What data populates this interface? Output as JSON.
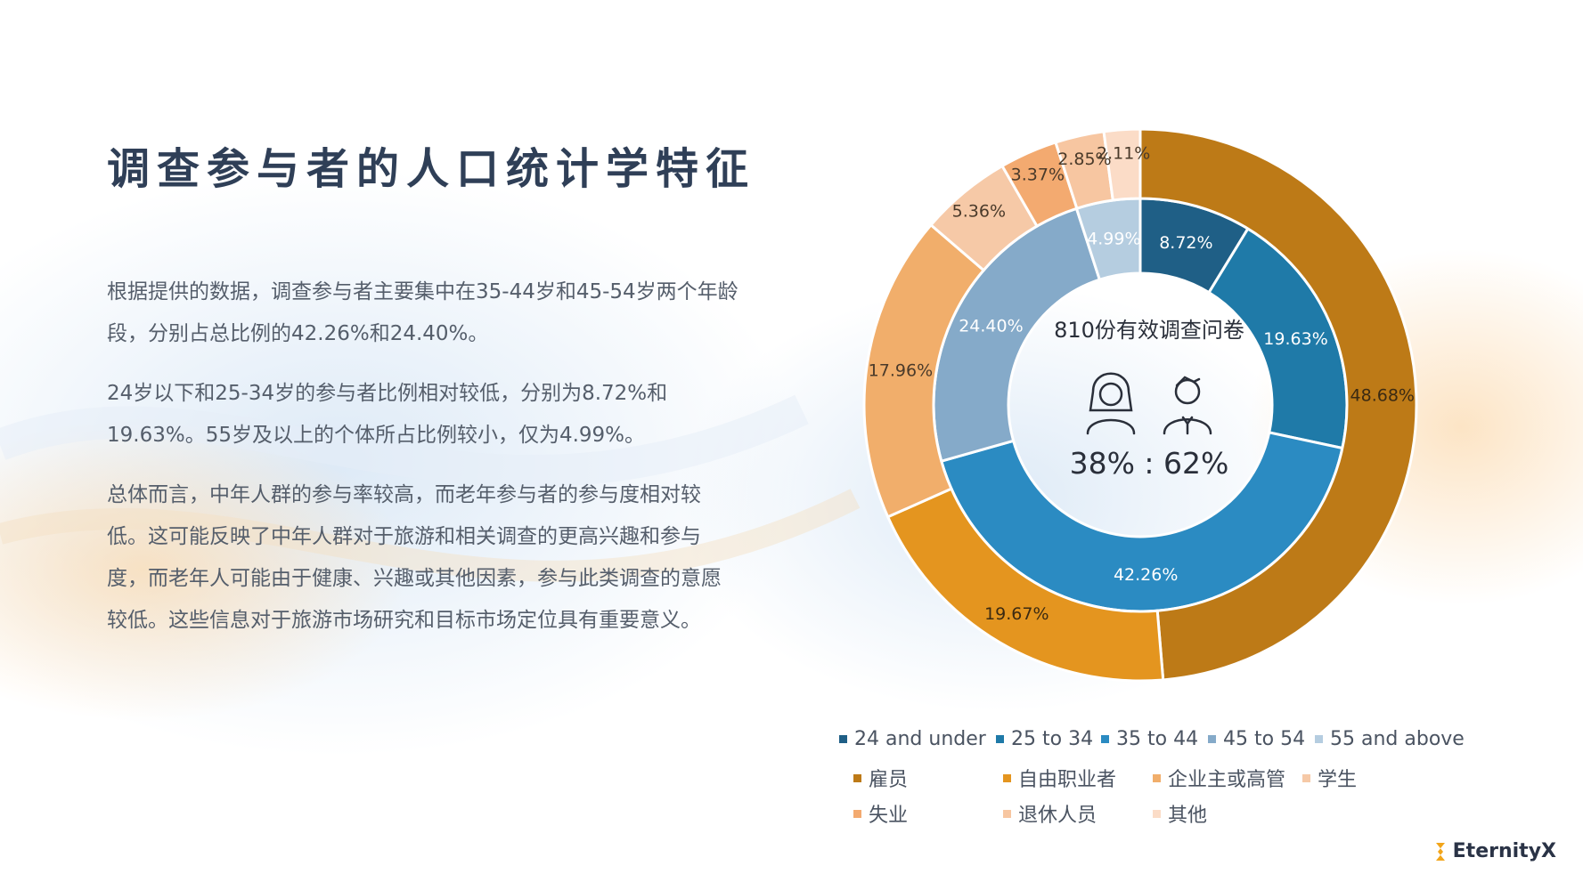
{
  "page": {
    "title": "调查参与者的人口统计学特征",
    "paragraphs": [
      "根据提供的数据，调查参与者主要集中在35-44岁和45-54岁两个年龄段，分别占总比例的42.26%和24.40%。",
      "24岁以下和25-34岁的参与者比例相对较低，分别为8.72%和19.63%。55岁及以上的个体所占比例较小，仅为4.99%。",
      "总体而言，中年人群的参与率较高，而老年参与者的参与度相对较低。这可能反映了中年人群对于旅游和相关调查的更高兴趣和参与度，而老年人可能由于健康、兴趣或其他因素，参与此类调查的意愿较低。这些信息对于旅游市场研究和目标市场定位具有重要意义。"
    ],
    "brand": "EternityX"
  },
  "center": {
    "caption": "810份有效调查问卷",
    "ratio": "38% : 62%",
    "icons": [
      "female-person-icon",
      "male-person-icon"
    ]
  },
  "chart_data": {
    "type": "pie",
    "center_label": "810份有效调查问卷",
    "series": [
      {
        "ring": "inner",
        "categories": [
          "24 and under",
          "25 to 34",
          "35 to 44",
          "45 to 54",
          "55 and above"
        ],
        "values": [
          8.72,
          19.63,
          42.26,
          24.4,
          4.99
        ],
        "labels": [
          "8.72%",
          "19.63%",
          "42.26%",
          "24.40%",
          "4.99%"
        ],
        "colors": [
          "#1f5f86",
          "#1f7aa8",
          "#2b8bc2",
          "#85aac9",
          "#b5cde0"
        ]
      },
      {
        "ring": "outer",
        "categories": [
          "雇员",
          "自由职业者",
          "企业主或高管",
          "学生",
          "失业",
          "退休人员",
          "其他"
        ],
        "values": [
          48.68,
          19.67,
          17.96,
          5.36,
          3.37,
          2.85,
          2.11
        ],
        "labels": [
          "48.68%",
          "19.67%",
          "17.96%",
          "5.36%",
          "3.37%",
          "2.85%",
          "2.11%"
        ],
        "colors": [
          "#bd7a17",
          "#e4951f",
          "#f1ae6b",
          "#f6c9a7",
          "#f3aa70",
          "#f7c6a1",
          "#fbdcc7"
        ]
      }
    ],
    "legend": {
      "placement": "bottom",
      "rows": [
        [
          "24 and under",
          "25 to 34",
          "35 to 44",
          "45 to 54",
          "55 and above"
        ],
        [
          "雇员",
          "自由职业者",
          "企业主或高管",
          "学生"
        ],
        [
          "失业",
          "退休人员",
          "其他"
        ]
      ]
    }
  }
}
